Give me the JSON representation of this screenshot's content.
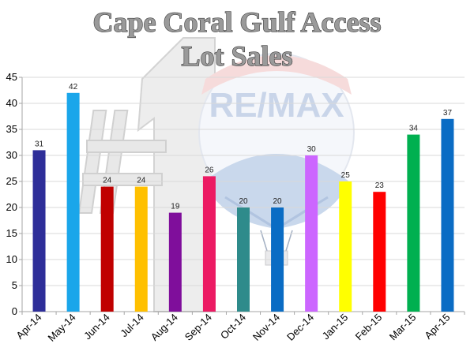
{
  "chart_data": {
    "type": "bar",
    "title_lines": [
      "Cape Coral Gulf Access",
      "Lot Sales"
    ],
    "categories": [
      "Apr-14",
      "May-14",
      "Jun-14",
      "Jul-14",
      "Aug-14",
      "Sep-14",
      "Oct-14",
      "Nov-14",
      "Dec-14",
      "Jan-15",
      "Feb-15",
      "Mar-15",
      "Apr-15"
    ],
    "values": [
      31,
      42,
      24,
      24,
      19,
      26,
      20,
      20,
      30,
      25,
      23,
      34,
      37
    ],
    "colors": [
      "#2e2e99",
      "#1aa6ea",
      "#c00000",
      "#ffc000",
      "#7f0e9b",
      "#ec1a63",
      "#2e8b8b",
      "#0a6cc4",
      "#cc66ff",
      "#ffff00",
      "#ff0000",
      "#00b050",
      "#0a6cc4"
    ],
    "ylim": [
      0,
      45
    ],
    "yticks": [
      0,
      5,
      10,
      15,
      20,
      25,
      30,
      35,
      40,
      45
    ],
    "grid": true,
    "legend": "none",
    "data_labels": true
  },
  "watermark": {
    "brand_text": "RE/MAX",
    "number_text": "#1"
  }
}
